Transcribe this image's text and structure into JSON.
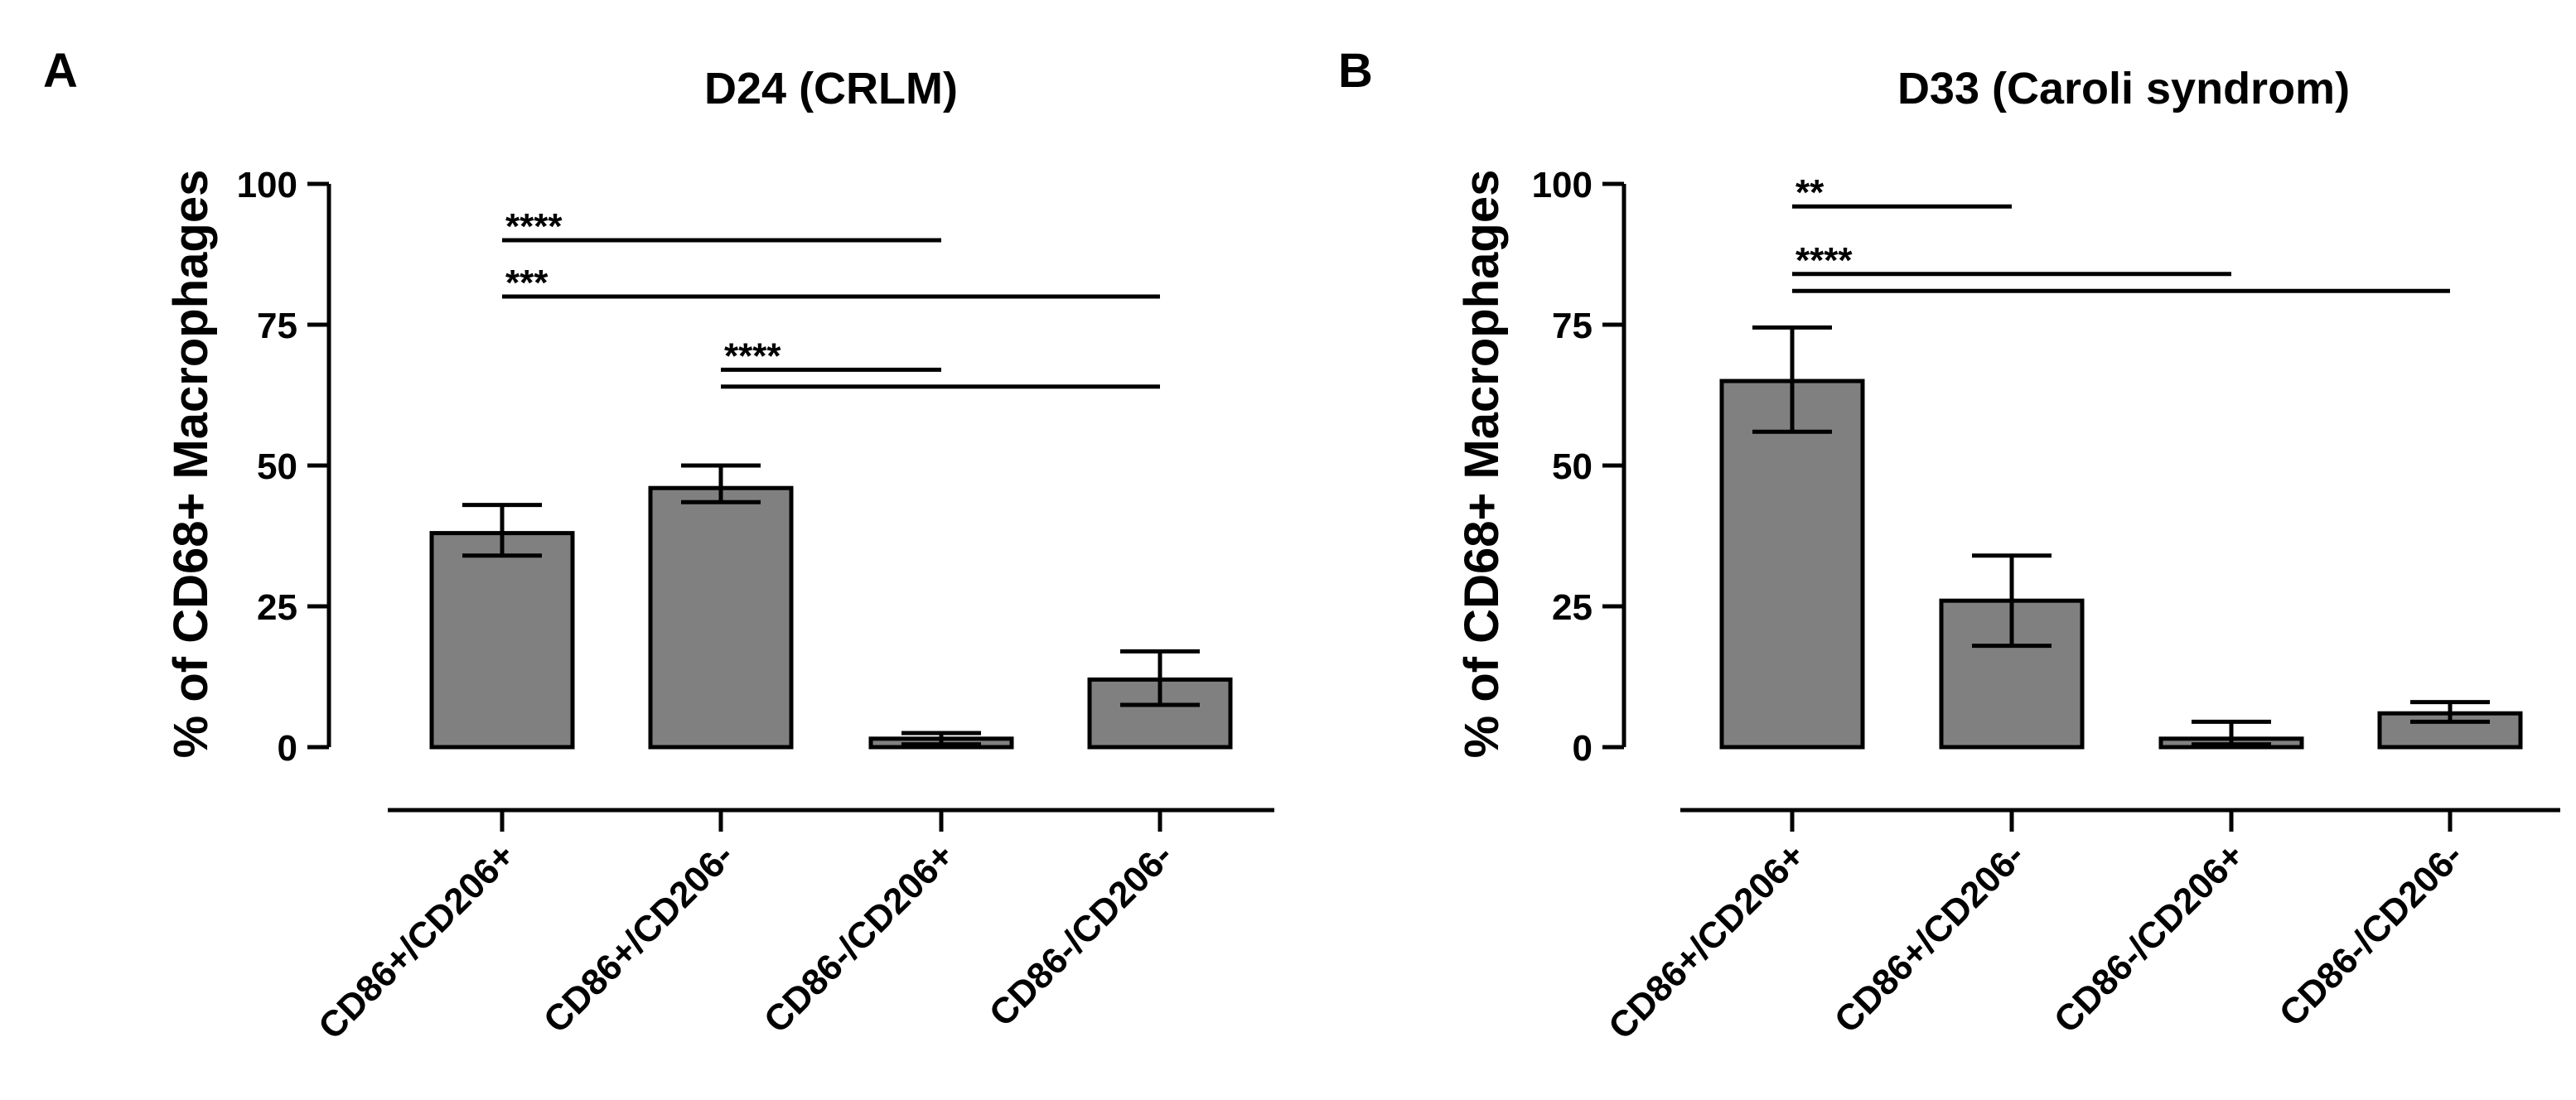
{
  "chart_data": [
    {
      "type": "bar",
      "panel": "A",
      "title": "D24 (CRLM)",
      "ylabel": "% of CD68+ Macrophages",
      "xlabel": "",
      "ylim": [
        0,
        100
      ],
      "yticks": [
        0,
        25,
        50,
        75,
        100
      ],
      "categories": [
        "CD86+/CD206+",
        "CD86+/CD206-",
        "CD86-/CD206+",
        "CD86-/CD206-"
      ],
      "values": [
        38,
        46,
        1.5,
        12
      ],
      "error_low": [
        34,
        43.5,
        0.5,
        7.5
      ],
      "error_high": [
        43,
        50,
        2.5,
        17
      ],
      "significance": [
        {
          "from": 0,
          "to": 2,
          "y": 90,
          "label": "****"
        },
        {
          "from": 0,
          "to": 3,
          "y": 80,
          "label": "***"
        },
        {
          "from": 1,
          "to": 2,
          "y": 67,
          "label": "****"
        },
        {
          "from": 1,
          "to": 3,
          "y": 64,
          "label": ""
        }
      ]
    },
    {
      "type": "bar",
      "panel": "B",
      "title": "D33 (Caroli syndrom)",
      "ylabel": "% of CD68+ Macrophages",
      "xlabel": "",
      "ylim": [
        0,
        100
      ],
      "yticks": [
        0,
        25,
        50,
        75,
        100
      ],
      "categories": [
        "CD86+/CD206+",
        "CD86+/CD206-",
        "CD86-/CD206+",
        "CD86-/CD206-"
      ],
      "values": [
        65,
        26,
        1.5,
        6
      ],
      "error_low": [
        56,
        18,
        0.5,
        4.5
      ],
      "error_high": [
        74.5,
        34,
        4.5,
        8
      ],
      "significance": [
        {
          "from": 0,
          "to": 1,
          "y": 96,
          "label": "**"
        },
        {
          "from": 0,
          "to": 2,
          "y": 84,
          "label": "****"
        },
        {
          "from": 0,
          "to": 3,
          "y": 81,
          "label": ""
        }
      ]
    }
  ]
}
